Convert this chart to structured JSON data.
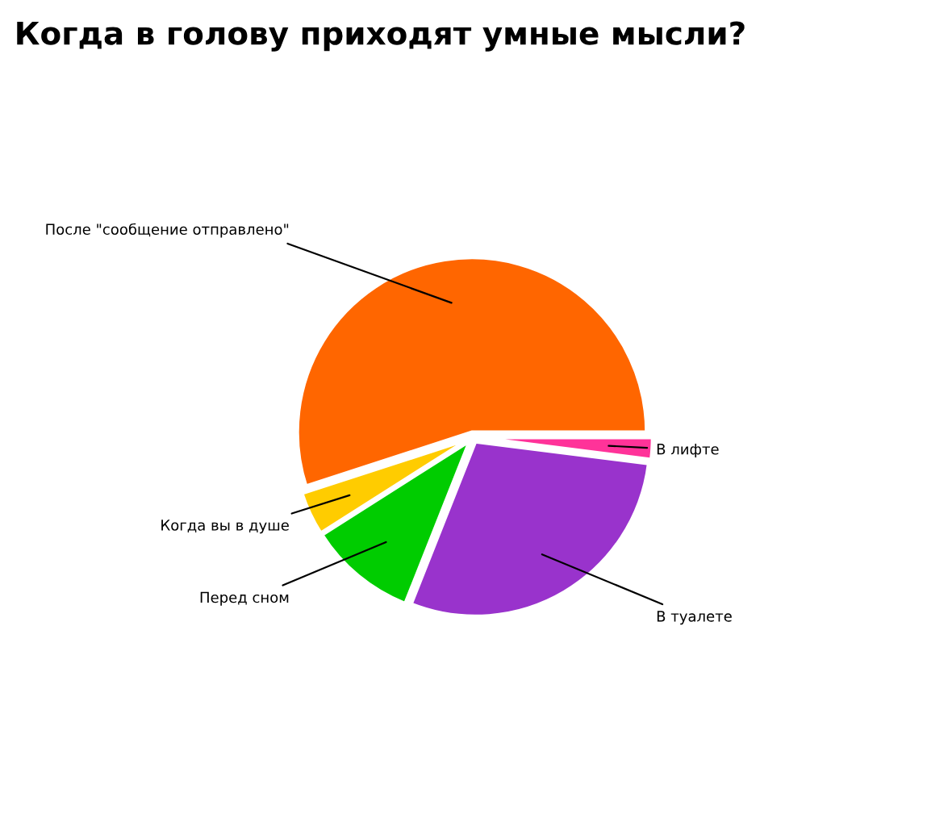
{
  "chart_data": {
    "type": "pie",
    "title": "Когда в голову приходят умные мысли?",
    "categories": [
      "После \"сообщение отправлено\"",
      "Когда вы в душе",
      "Перед сном",
      "В туалете",
      "В лифте"
    ],
    "values": [
      55,
      4,
      10,
      29,
      2
    ],
    "colors": [
      "#ff6600",
      "#ffcc00",
      "#00cc00",
      "#9933cc",
      "#ff3399"
    ],
    "legend": false
  }
}
